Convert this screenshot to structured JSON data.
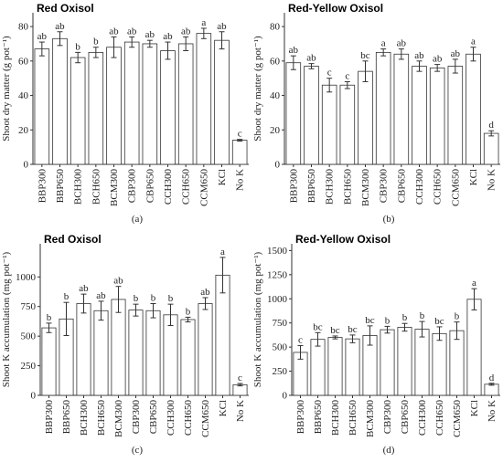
{
  "chart_data": [
    {
      "type": "bar",
      "title": "Red Oxisol",
      "caption": "(a)",
      "y_label": "Shoot dry matter (g pot⁻¹)",
      "categories": [
        "BBP300",
        "BBP650",
        "BCH300",
        "BCH650",
        "BCM300",
        "CBP300",
        "CBP650",
        "CCH300",
        "CCH650",
        "CCM650",
        "KCl",
        "No K"
      ],
      "values": [
        67,
        73,
        62,
        65,
        68,
        71,
        70,
        66,
        70,
        76,
        72,
        14
      ],
      "errors": [
        4,
        4,
        3,
        3,
        6,
        3,
        2,
        5,
        4,
        3,
        5,
        0.5
      ],
      "letters": [
        "ab",
        "ab",
        "b",
        "b",
        "ab",
        "ab",
        "ab",
        "ab",
        "ab",
        "a",
        "ab",
        "c"
      ],
      "ylim": [
        0,
        88
      ],
      "yticks": [
        0,
        20,
        40,
        60,
        80
      ],
      "color": "#ffffff"
    },
    {
      "type": "bar",
      "title": "Red-Yellow Oxisol",
      "caption": "(b)",
      "y_label": "Shoot dry matter (g pot⁻¹)",
      "categories": [
        "BBP300",
        "BBP650",
        "BCH300",
        "BCH650",
        "BCM300",
        "CBP300",
        "CBP650",
        "CCH300",
        "CCH650",
        "CCM650",
        "KCl",
        "No K"
      ],
      "values": [
        59,
        57,
        46,
        46,
        54,
        65,
        64,
        57,
        56,
        57,
        64,
        18
      ],
      "errors": [
        4,
        1.5,
        4,
        2,
        6,
        2,
        3,
        3,
        2,
        4,
        4,
        1.5
      ],
      "letters": [
        "ab",
        "ab",
        "c",
        "c",
        "bc",
        "a",
        "ab",
        "ab",
        "ab",
        "ab",
        "a",
        "d"
      ],
      "ylim": [
        0,
        88
      ],
      "yticks": [
        0,
        20,
        40,
        60,
        80
      ],
      "color": "#ffffff"
    },
    {
      "type": "bar",
      "title": "Red Oxisol",
      "caption": "(c)",
      "y_label": "Shoot K accumulation (mg pot⁻¹)",
      "categories": [
        "BBP300",
        "BBP650",
        "BCH300",
        "BCH650",
        "BCM300",
        "CBP300",
        "CBP650",
        "CCH300",
        "CCH650",
        "CCM650",
        "KCl",
        "No K"
      ],
      "values": [
        570,
        645,
        775,
        715,
        810,
        720,
        715,
        680,
        640,
        775,
        1015,
        90
      ],
      "errors": [
        40,
        140,
        80,
        80,
        110,
        50,
        60,
        90,
        20,
        50,
        150,
        10
      ],
      "letters": [
        "b",
        "b",
        "ab",
        "ab",
        "ab",
        "b",
        "b",
        "b",
        "b",
        "ab",
        "a",
        "c"
      ],
      "ylim": [
        0,
        1280
      ],
      "yticks": [
        0,
        250,
        500,
        750,
        1000
      ],
      "color": "#ffffff"
    },
    {
      "type": "bar",
      "title": "Red-Yellow Oxisol",
      "caption": "(d)",
      "y_label": "Shoot K accumulation (mg pot⁻¹)",
      "categories": [
        "BBP300",
        "BBP650",
        "BCH300",
        "BCH650",
        "BCM300",
        "CBP300",
        "CBP650",
        "CCH300",
        "CCH650",
        "CCM650",
        "KCl",
        "No K"
      ],
      "values": [
        445,
        580,
        600,
        585,
        620,
        680,
        705,
        685,
        640,
        670,
        995,
        115
      ],
      "errors": [
        70,
        70,
        15,
        40,
        100,
        35,
        40,
        80,
        70,
        90,
        110,
        10
      ],
      "letters": [
        "c",
        "bc",
        "bc",
        "bc",
        "bc",
        "b",
        "b",
        "b",
        "bc",
        "b",
        "a",
        "d"
      ],
      "ylim": [
        0,
        1570
      ],
      "yticks": [
        0,
        250,
        500,
        750,
        1000,
        1250,
        1500
      ],
      "color": "#ffffff"
    }
  ]
}
